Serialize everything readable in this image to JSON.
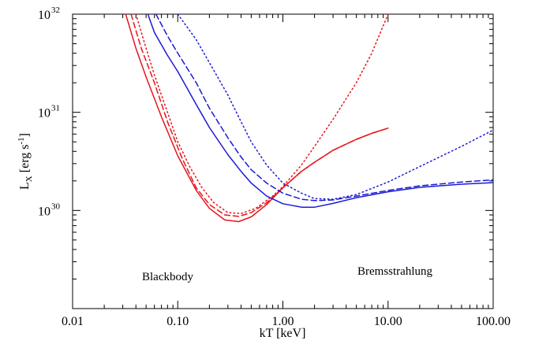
{
  "chart_data": {
    "type": "line",
    "title": "",
    "xlabel": "kT [keV]",
    "ylabel": {
      "base": "L",
      "sub": "X",
      "unit": "[erg s",
      "unit_sup": "-1",
      "unit_end": "]"
    },
    "xscale": "log",
    "yscale": "log",
    "xlim": [
      0.01,
      100
    ],
    "ylim": [
      1e+29,
      1e+32
    ],
    "xticks": [
      {
        "value": 0.01,
        "label": "0.01"
      },
      {
        "value": 0.1,
        "label": "0.10"
      },
      {
        "value": 1,
        "label": "1.00"
      },
      {
        "value": 10,
        "label": "10.00"
      },
      {
        "value": 100,
        "label": "100.00"
      }
    ],
    "yticks": [
      {
        "value": 1e+30,
        "base": "10",
        "exp": "30"
      },
      {
        "value": 1e+31,
        "base": "10",
        "exp": "31"
      },
      {
        "value": 1e+32,
        "base": "10",
        "exp": "32"
      }
    ],
    "grid": false,
    "annotations": [
      {
        "text": "Blackbody",
        "color": "#e8141c"
      },
      {
        "text": "Bremsstrahlung",
        "color": "#1a1ad6"
      }
    ],
    "series": [
      {
        "model": "blackbody",
        "style": "solid",
        "color": "#e8141c",
        "points": [
          [
            0.032,
            1e+32
          ],
          [
            0.04,
            4.5e+31
          ],
          [
            0.05,
            2.3e+31
          ],
          [
            0.07,
            9e+30
          ],
          [
            0.1,
            3.6e+30
          ],
          [
            0.15,
            1.6e+30
          ],
          [
            0.2,
            1.05e+30
          ],
          [
            0.28,
            8e+29
          ],
          [
            0.38,
            7.7e+29
          ],
          [
            0.5,
            8.6e+29
          ],
          [
            0.7,
            1.15e+30
          ],
          [
            1.0,
            1.7e+30
          ],
          [
            1.5,
            2.5e+30
          ],
          [
            2,
            3.1e+30
          ],
          [
            3,
            4.1e+30
          ],
          [
            5,
            5.3e+30
          ],
          [
            7,
            6.1e+30
          ],
          [
            10,
            6.9e+30
          ]
        ]
      },
      {
        "model": "blackbody",
        "style": "dashed",
        "color": "#e8141c",
        "points": [
          [
            0.036,
            1e+32
          ],
          [
            0.045,
            4.5e+31
          ],
          [
            0.06,
            2e+31
          ],
          [
            0.08,
            8e+30
          ],
          [
            0.11,
            3.4e+30
          ],
          [
            0.15,
            1.7e+30
          ],
          [
            0.2,
            1.15e+30
          ],
          [
            0.28,
            9e+29
          ],
          [
            0.38,
            8.7e+29
          ],
          [
            0.5,
            9.5e+29
          ],
          [
            0.7,
            1.2e+30
          ],
          [
            1.0,
            1.7e+30
          ],
          [
            1.5,
            2.5e+30
          ],
          [
            2,
            3.1e+30
          ],
          [
            3,
            4.1e+30
          ],
          [
            5,
            5.3e+30
          ],
          [
            7,
            6.1e+30
          ],
          [
            10,
            6.9e+30
          ]
        ]
      },
      {
        "model": "blackbody",
        "style": "dotted",
        "color": "#e8141c",
        "points": [
          [
            0.04,
            1e+32
          ],
          [
            0.05,
            4.5e+31
          ],
          [
            0.06,
            2.4e+31
          ],
          [
            0.08,
            1e+31
          ],
          [
            0.1,
            5e+30
          ],
          [
            0.13,
            2.8e+30
          ],
          [
            0.17,
            1.7e+30
          ],
          [
            0.22,
            1.2e+30
          ],
          [
            0.3,
            9.5e+29
          ],
          [
            0.4,
            9.3e+29
          ],
          [
            0.55,
            1.05e+30
          ],
          [
            0.8,
            1.4e+30
          ],
          [
            1.0,
            1.75e+30
          ],
          [
            1.5,
            2.9e+30
          ],
          [
            2,
            4.5e+30
          ],
          [
            3,
            8.5e+30
          ],
          [
            5,
            2e+31
          ],
          [
            7,
            4e+31
          ],
          [
            10,
            1e+32
          ]
        ]
      },
      {
        "model": "bremsstrahlung",
        "style": "solid",
        "color": "#1a1ad6",
        "points": [
          [
            0.052,
            1e+32
          ],
          [
            0.06,
            6.5e+31
          ],
          [
            0.08,
            3.8e+31
          ],
          [
            0.1,
            2.6e+31
          ],
          [
            0.15,
            1.2e+31
          ],
          [
            0.2,
            7e+30
          ],
          [
            0.3,
            3.7e+30
          ],
          [
            0.4,
            2.5e+30
          ],
          [
            0.5,
            1.9e+30
          ],
          [
            0.7,
            1.4e+30
          ],
          [
            1.0,
            1.17e+30
          ],
          [
            1.5,
            1.08e+30
          ],
          [
            2,
            1.08e+30
          ],
          [
            3,
            1.18e+30
          ],
          [
            5,
            1.35e+30
          ],
          [
            10,
            1.55e+30
          ],
          [
            20,
            1.72e+30
          ],
          [
            50,
            1.85e+30
          ],
          [
            100,
            1.92e+30
          ]
        ]
      },
      {
        "model": "bremsstrahlung",
        "style": "dashed",
        "color": "#1a1ad6",
        "points": [
          [
            0.062,
            1e+32
          ],
          [
            0.08,
            6e+31
          ],
          [
            0.1,
            4e+31
          ],
          [
            0.15,
            2e+31
          ],
          [
            0.2,
            1.1e+31
          ],
          [
            0.3,
            5.5e+30
          ],
          [
            0.4,
            3.5e+30
          ],
          [
            0.5,
            2.6e+30
          ],
          [
            0.7,
            1.9e+30
          ],
          [
            1.0,
            1.5e+30
          ],
          [
            1.5,
            1.3e+30
          ],
          [
            2,
            1.26e+30
          ],
          [
            3,
            1.28e+30
          ],
          [
            5,
            1.4e+30
          ],
          [
            10,
            1.6e+30
          ],
          [
            20,
            1.78e+30
          ],
          [
            50,
            1.95e+30
          ],
          [
            100,
            2.05e+30
          ]
        ]
      },
      {
        "model": "bremsstrahlung",
        "style": "dotted",
        "color": "#1a1ad6",
        "points": [
          [
            0.1,
            1e+32
          ],
          [
            0.15,
            5.5e+31
          ],
          [
            0.2,
            3.2e+31
          ],
          [
            0.3,
            1.5e+31
          ],
          [
            0.4,
            8e+30
          ],
          [
            0.5,
            5e+30
          ],
          [
            0.7,
            2.9e+30
          ],
          [
            1.0,
            1.9e+30
          ],
          [
            1.5,
            1.5e+30
          ],
          [
            2,
            1.32e+30
          ],
          [
            3,
            1.3e+30
          ],
          [
            5,
            1.45e+30
          ],
          [
            10,
            1.95e+30
          ],
          [
            20,
            2.8e+30
          ],
          [
            50,
            4.5e+30
          ],
          [
            100,
            6.6e+30
          ]
        ]
      }
    ]
  }
}
